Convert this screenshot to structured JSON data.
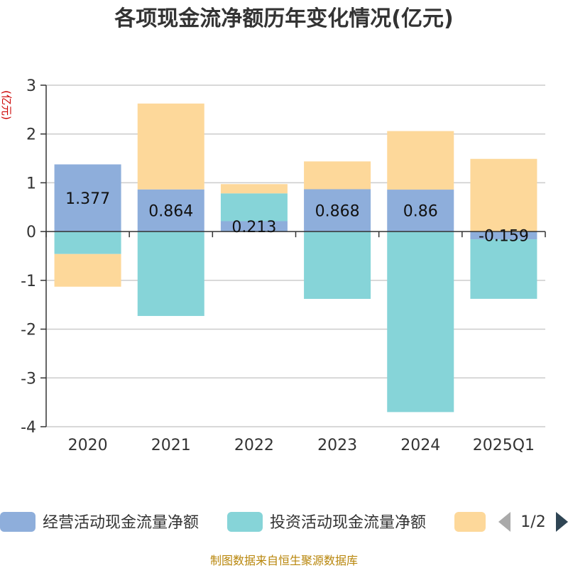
{
  "chart_data": {
    "type": "bar",
    "stacked": true,
    "title": "各项现金流净额历年变化情况(亿元)",
    "ylabel": "(亿元)",
    "categories": [
      "2020",
      "2021",
      "2022",
      "2023",
      "2024",
      "2025Q1"
    ],
    "ylim": [
      -4,
      3
    ],
    "yticks": [
      3,
      2,
      1,
      0,
      -1,
      -2,
      -3,
      -4
    ],
    "grid": true,
    "legend_position": "bottom",
    "series": [
      {
        "name": "经营活动现金流量净额",
        "color": "#8eaedb",
        "show_labels": true,
        "values": [
          1.377,
          0.864,
          0.213,
          0.868,
          0.86,
          -0.159
        ]
      },
      {
        "name": "投资活动现金流量净额",
        "color": "#86d4d8",
        "show_labels": false,
        "values": [
          -0.46,
          -1.73,
          0.57,
          -1.38,
          -3.7,
          -1.22
        ]
      },
      {
        "name": "",
        "color": "#fdd89a",
        "show_labels": false,
        "values": [
          -0.67,
          1.76,
          0.19,
          0.57,
          1.2,
          1.49
        ]
      }
    ]
  },
  "legend": {
    "items": [
      "经营活动现金流量净额",
      "投资活动现金流量净额",
      ""
    ],
    "page_indicator": "1/2"
  },
  "source": "制图数据来自恒生聚源数据库",
  "colors": {
    "prev_arrow": "#aaaaaa",
    "next_arrow": "#2f4554"
  }
}
